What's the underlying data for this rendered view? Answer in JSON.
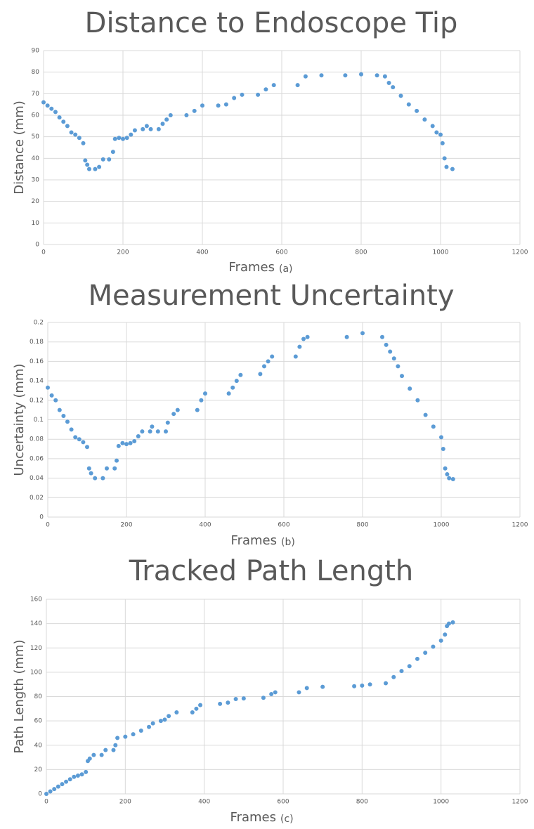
{
  "chart_data": [
    {
      "type": "scatter",
      "title": "Distance to Endoscope Tip",
      "x_label": "Frames",
      "caption": "(a)",
      "y_label": "Distance (mm)",
      "xlim": [
        0,
        1200
      ],
      "xticks": [
        0,
        200,
        400,
        600,
        800,
        1000,
        1200
      ],
      "ylim": [
        0,
        90
      ],
      "yticks": [
        0,
        10,
        20,
        30,
        40,
        50,
        60,
        70,
        80,
        90
      ],
      "grid": true,
      "color": "#5b9bd5",
      "x": [
        0,
        10,
        20,
        30,
        40,
        50,
        60,
        70,
        80,
        90,
        100,
        105,
        110,
        115,
        130,
        140,
        150,
        165,
        175,
        180,
        190,
        200,
        210,
        220,
        230,
        250,
        260,
        270,
        290,
        300,
        310,
        320,
        360,
        380,
        400,
        440,
        460,
        480,
        500,
        540,
        560,
        580,
        640,
        660,
        700,
        760,
        800,
        840,
        860,
        870,
        880,
        900,
        920,
        940,
        960,
        980,
        990,
        1000,
        1005,
        1010,
        1015,
        1030
      ],
      "values": [
        66,
        64.5,
        63,
        61.5,
        59,
        57,
        55,
        52,
        51,
        49.5,
        47,
        39,
        37,
        35,
        35,
        36,
        39.5,
        39.5,
        43,
        49,
        49.5,
        49,
        49.5,
        51,
        53,
        53.5,
        55,
        53.5,
        53.5,
        56,
        58,
        60,
        60,
        62,
        64.5,
        64.5,
        65,
        68,
        69.5,
        69.5,
        72,
        74,
        74,
        78,
        78.5,
        78.5,
        79,
        78.5,
        78,
        75,
        73,
        69,
        65,
        62,
        58,
        55,
        52,
        51,
        47,
        40,
        36,
        35
      ]
    },
    {
      "type": "scatter",
      "title": "Measurement Uncertainty",
      "x_label": "Frames",
      "caption": "(b)",
      "y_label": "Uncertainty (mm)",
      "xlim": [
        0,
        1200
      ],
      "xticks": [
        0,
        200,
        400,
        600,
        800,
        1000,
        1200
      ],
      "ylim": [
        0,
        0.2
      ],
      "yticks": [
        0,
        0.02,
        0.04,
        0.06,
        0.08,
        0.1,
        0.12,
        0.14,
        0.16,
        0.18,
        0.2
      ],
      "grid": true,
      "color": "#5b9bd5",
      "x": [
        0,
        10,
        20,
        30,
        40,
        50,
        60,
        70,
        80,
        90,
        100,
        105,
        110,
        120,
        140,
        150,
        170,
        175,
        180,
        190,
        200,
        210,
        220,
        230,
        240,
        260,
        265,
        280,
        300,
        305,
        320,
        330,
        380,
        390,
        400,
        460,
        470,
        480,
        490,
        540,
        550,
        560,
        570,
        630,
        640,
        650,
        660,
        760,
        800,
        850,
        860,
        870,
        880,
        890,
        900,
        920,
        940,
        960,
        980,
        1000,
        1005,
        1010,
        1015,
        1020,
        1030
      ],
      "values": [
        0.133,
        0.125,
        0.12,
        0.11,
        0.104,
        0.098,
        0.09,
        0.082,
        0.08,
        0.077,
        0.072,
        0.05,
        0.045,
        0.04,
        0.04,
        0.05,
        0.05,
        0.058,
        0.073,
        0.076,
        0.075,
        0.076,
        0.078,
        0.083,
        0.088,
        0.088,
        0.093,
        0.088,
        0.088,
        0.097,
        0.106,
        0.11,
        0.11,
        0.12,
        0.127,
        0.127,
        0.133,
        0.14,
        0.146,
        0.147,
        0.155,
        0.16,
        0.165,
        0.165,
        0.175,
        0.183,
        0.185,
        0.185,
        0.189,
        0.185,
        0.177,
        0.17,
        0.163,
        0.155,
        0.145,
        0.132,
        0.12,
        0.105,
        0.093,
        0.082,
        0.07,
        0.05,
        0.044,
        0.04,
        0.039
      ]
    },
    {
      "type": "scatter",
      "title": "Tracked Path Length",
      "x_label": "Frames",
      "caption": "(c)",
      "y_label": "Path Length (mm)",
      "xlim": [
        0,
        1200
      ],
      "xticks": [
        0,
        200,
        400,
        600,
        800,
        1000,
        1200
      ],
      "ylim": [
        0,
        160
      ],
      "yticks": [
        0,
        20,
        40,
        60,
        80,
        100,
        120,
        140,
        160
      ],
      "grid": true,
      "color": "#5b9bd5",
      "x": [
        0,
        10,
        20,
        30,
        40,
        50,
        60,
        70,
        80,
        90,
        100,
        105,
        110,
        120,
        140,
        150,
        170,
        175,
        180,
        200,
        220,
        240,
        260,
        270,
        290,
        300,
        310,
        330,
        370,
        380,
        390,
        440,
        460,
        480,
        500,
        550,
        570,
        580,
        640,
        660,
        700,
        780,
        800,
        820,
        860,
        880,
        900,
        920,
        940,
        960,
        980,
        1000,
        1010,
        1015,
        1020,
        1030
      ],
      "values": [
        0,
        2,
        4,
        6,
        8,
        10,
        12,
        14,
        15,
        16,
        18,
        27,
        29,
        32,
        32,
        36,
        36,
        40,
        46,
        47,
        49,
        52,
        55,
        58,
        60,
        61,
        64,
        67,
        67,
        70,
        73,
        74,
        75,
        78,
        78.5,
        79,
        82,
        83.5,
        83.5,
        87,
        88,
        88.5,
        89,
        90,
        91,
        96,
        101,
        105,
        111,
        116,
        121,
        126,
        131,
        138,
        140,
        141
      ]
    }
  ]
}
